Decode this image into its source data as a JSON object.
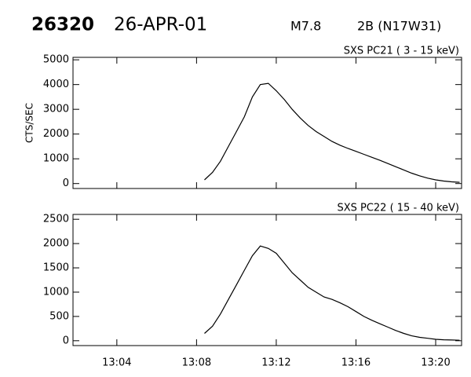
{
  "header": {
    "event": "26320",
    "date": "26-APR-01",
    "class": "M7.8",
    "optical": "2B (N17W31)"
  },
  "chart_data": [
    {
      "type": "line",
      "subtitle": "SXS PC21  (  3 - 15 keV)",
      "ylabel": "CTS/SEC",
      "color": "#000000",
      "x": [
        788.4,
        788.8,
        789.2,
        789.6,
        790.0,
        790.4,
        790.8,
        791.2,
        791.6,
        792.0,
        792.4,
        792.8,
        793.2,
        793.6,
        794.0,
        794.4,
        794.8,
        795.2,
        795.6,
        796.0,
        796.4,
        796.8,
        797.2,
        797.6,
        798.0,
        798.4,
        798.8,
        799.2,
        799.6,
        800.0,
        800.4,
        800.8,
        801.2
      ],
      "values": [
        150,
        450,
        900,
        1500,
        2100,
        2700,
        3500,
        4000,
        4050,
        3750,
        3400,
        3000,
        2650,
        2350,
        2100,
        1900,
        1700,
        1550,
        1420,
        1300,
        1180,
        1060,
        940,
        810,
        680,
        550,
        420,
        310,
        220,
        150,
        100,
        70,
        50
      ],
      "xlim": [
        781.8,
        801.3
      ],
      "xticks": [
        784,
        788,
        792,
        796,
        800
      ],
      "ylim": [
        -200,
        5100
      ],
      "yticks": [
        0,
        1000,
        2000,
        3000,
        4000,
        5000
      ]
    },
    {
      "type": "line",
      "subtitle": "SXS PC22  ( 15 - 40 keV)",
      "color": "#000000",
      "x": [
        788.4,
        788.8,
        789.2,
        789.6,
        790.0,
        790.4,
        790.8,
        791.2,
        791.6,
        792.0,
        792.4,
        792.8,
        793.2,
        793.6,
        794.0,
        794.4,
        794.8,
        795.2,
        795.6,
        796.0,
        796.4,
        796.8,
        797.2,
        797.6,
        798.0,
        798.4,
        798.8,
        799.2,
        799.6,
        800.0,
        800.4,
        800.8,
        801.2
      ],
      "values": [
        150,
        300,
        550,
        850,
        1150,
        1450,
        1750,
        1950,
        1900,
        1800,
        1600,
        1400,
        1250,
        1100,
        1000,
        900,
        850,
        780,
        700,
        600,
        500,
        420,
        350,
        280,
        210,
        150,
        100,
        70,
        50,
        30,
        20,
        15,
        10
      ],
      "xlim": [
        781.8,
        801.3
      ],
      "xticks": [
        {
          "value": 784,
          "label": "13:04"
        },
        {
          "value": 788,
          "label": "13:08"
        },
        {
          "value": 792,
          "label": "13:12"
        },
        {
          "value": 796,
          "label": "13:16"
        },
        {
          "value": 800,
          "label": "13:20"
        }
      ],
      "ylim": [
        -100,
        2600
      ],
      "yticks": [
        0,
        500,
        1000,
        1500,
        2000,
        2500
      ]
    }
  ]
}
